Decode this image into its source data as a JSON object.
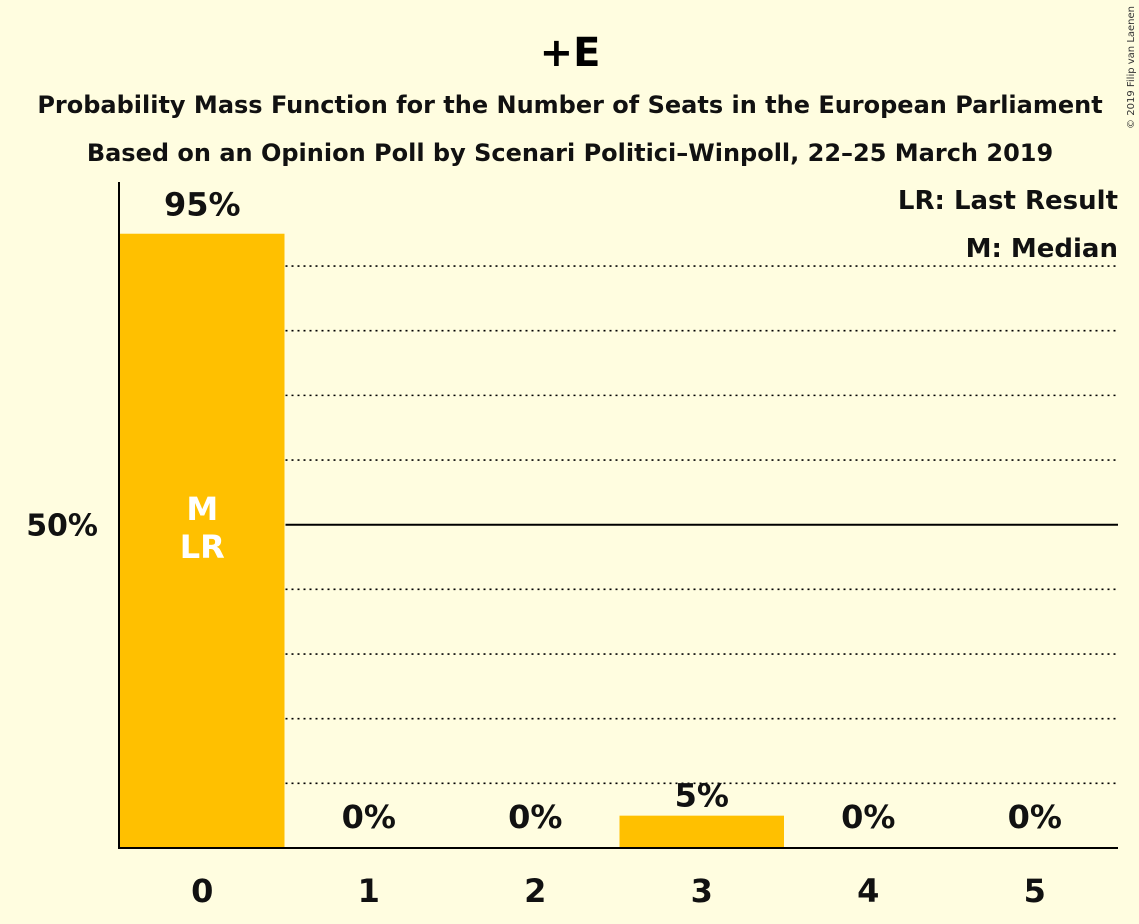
{
  "chart_data": {
    "type": "bar",
    "title": "+E",
    "subtitle_1": "Probability Mass Function for the Number of Seats in the European Parliament",
    "subtitle_2": "Based on an Opinion Poll by Scenari Politici–Winpoll, 22–25 March 2019",
    "copyright": "© 2019 Filip van Laenen",
    "categories": [
      "0",
      "1",
      "2",
      "3",
      "4",
      "5"
    ],
    "values": [
      95,
      0,
      0,
      5,
      0,
      0
    ],
    "data_labels": [
      "95%",
      "0%",
      "0%",
      "5%",
      "0%",
      "0%"
    ],
    "bar_annotations": [
      [
        "M",
        "LR"
      ],
      [],
      [],
      [],
      [],
      []
    ],
    "ylim": [
      0,
      103
    ],
    "y_ticks": [
      {
        "value": 50,
        "label": "50%"
      }
    ],
    "gridlines": [
      10,
      20,
      30,
      40,
      60,
      70,
      80,
      90
    ],
    "highlight_line": 50,
    "legend": [
      "LR: Last Result",
      "M: Median"
    ],
    "legend_position": "top-right",
    "colors": {
      "bar": "#ffc000",
      "background": "#fffde0",
      "axis": "#000000",
      "inbar_text": "#ffffff"
    }
  }
}
